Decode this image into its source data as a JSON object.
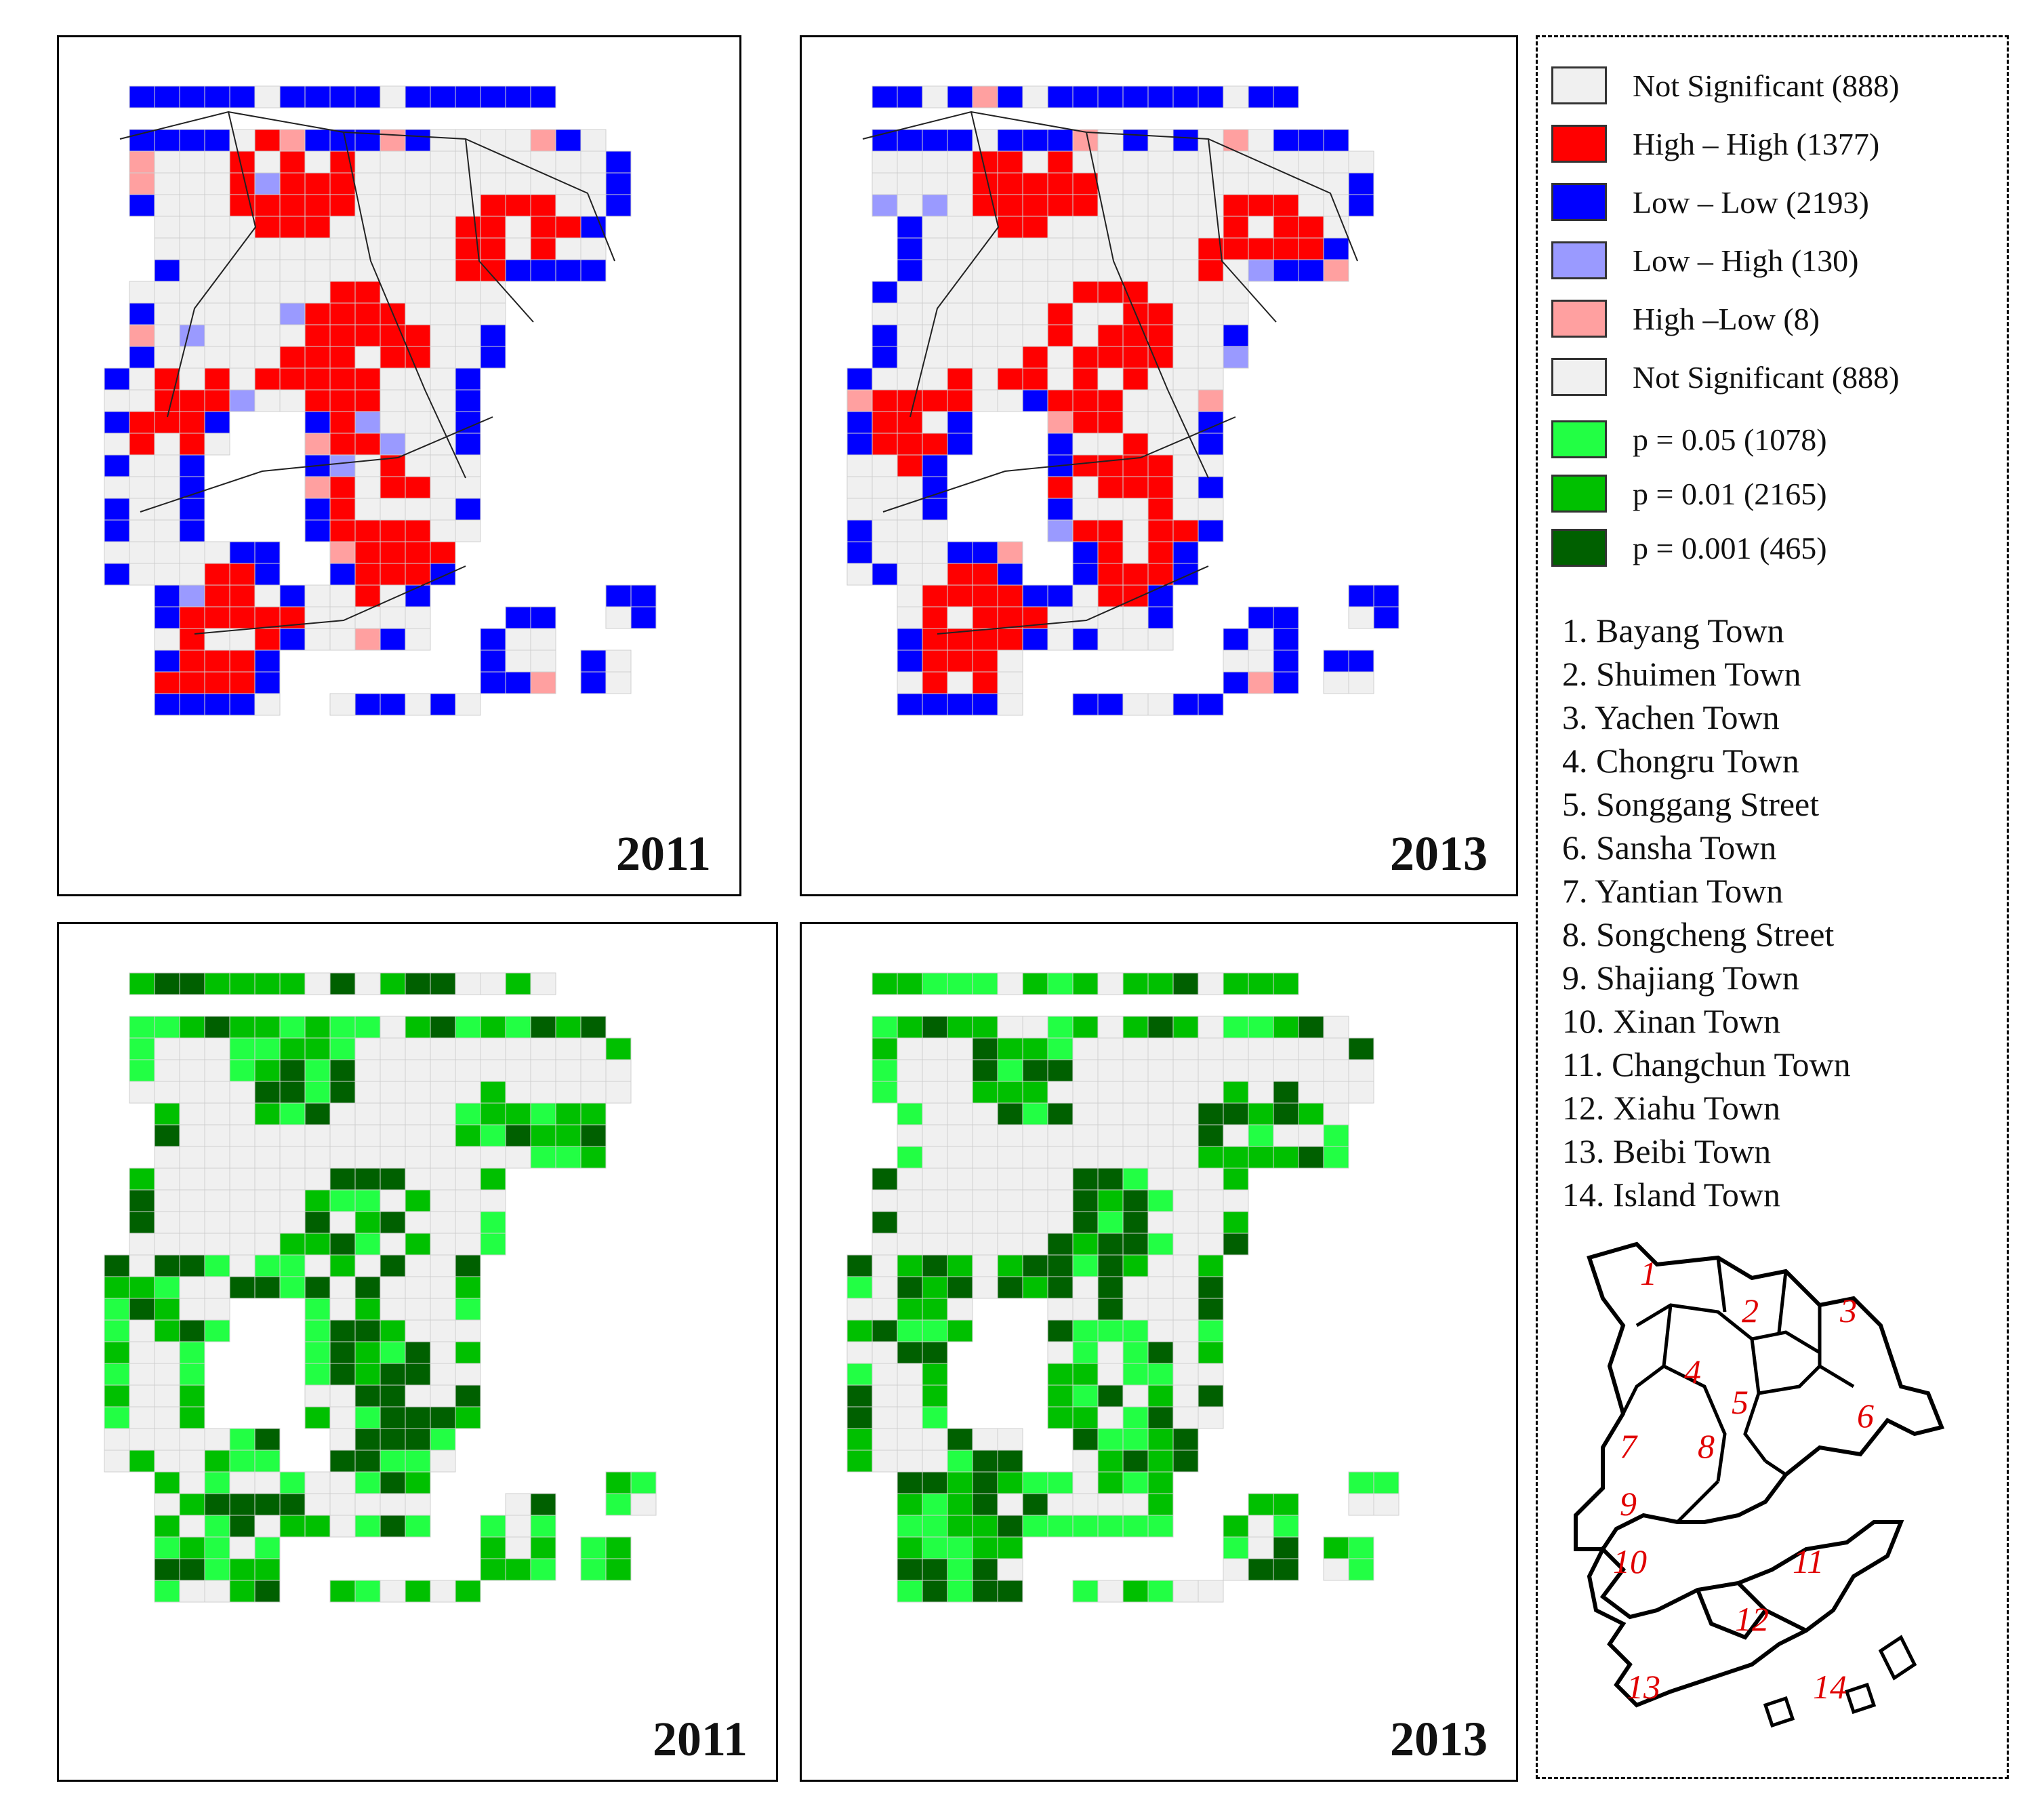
{
  "panels": [
    {
      "id": "lisa-2011",
      "year": "2011",
      "type": "lisa"
    },
    {
      "id": "lisa-2013",
      "year": "2013",
      "type": "lisa"
    },
    {
      "id": "sig-2011",
      "year": "2011",
      "type": "significance"
    },
    {
      "id": "sig-2013",
      "year": "2013",
      "type": "significance"
    }
  ],
  "legend": {
    "items": [
      {
        "label": "Not Significant (888)",
        "color": "#f0f0f0"
      },
      {
        "label": "High – High (1377)",
        "color": "#ff0000"
      },
      {
        "label": "Low – Low (2193)",
        "color": "#0000ff"
      },
      {
        "label": "Low – High (130)",
        "color": "#9a9aff"
      },
      {
        "label": "High –Low (8)",
        "color": "#ffa0a0"
      },
      {
        "label": "Not Significant (888)",
        "color": "#f0f0f0"
      },
      {
        "label": "p = 0.05 (1078)",
        "color": "#22ff44"
      },
      {
        "label": "p = 0.01 (2165)",
        "color": "#00c000"
      },
      {
        "label": "p = 0.001 (465)",
        "color": "#006000"
      }
    ]
  },
  "towns": [
    "1. Bayang Town",
    "2. Shuimen Town",
    "3. Yachen Town",
    "4. Chongru Town",
    "5. Songgang Street",
    "6. Sansha Town",
    "7. Yantian Town",
    "8. Songcheng Street",
    "9. Shajiang Town",
    "10. Xinan Town",
    "11. Changchun Town",
    "12. Xiahu Town",
    "13. Beibi Town",
    "14. Island Town"
  ],
  "mini_map_labels": [
    "1",
    "2",
    "3",
    "4",
    "5",
    "6",
    "7",
    "8",
    "9",
    "10",
    "11",
    "12",
    "13",
    "14"
  ]
}
